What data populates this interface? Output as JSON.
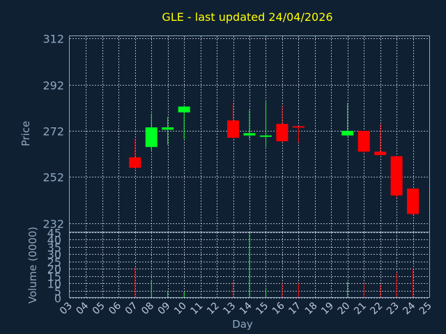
{
  "chart_data": {
    "type": "candlestick",
    "title": "GLE - last updated 24/04/2026",
    "price_panel": {
      "ylabel": "Price",
      "ylim": [
        228,
        313
      ],
      "y_ticks": [
        232,
        252,
        272,
        292,
        312
      ]
    },
    "volume_panel": {
      "ylabel": "Volume (0000)",
      "ylim": [
        0,
        45
      ],
      "y_ticks": [
        0,
        5,
        10,
        15,
        20,
        25,
        30,
        35,
        40,
        45
      ]
    },
    "xlabel": "Day",
    "x_ticks": [
      "03",
      "04",
      "05",
      "06",
      "07",
      "08",
      "09",
      "10",
      "11",
      "12",
      "13",
      "14",
      "15",
      "16",
      "17",
      "18",
      "19",
      "20",
      "21",
      "22",
      "23",
      "24",
      "25"
    ],
    "colors": {
      "up": "#00ff22",
      "down": "#ff0000",
      "title": "#ffff00",
      "axis": "#8fa8c0",
      "background": "#102033"
    },
    "candles": [
      {
        "day": "07",
        "open": 260.5,
        "high": 268.5,
        "low": 255.5,
        "close": 256.0,
        "volume": 21
      },
      {
        "day": "08",
        "open": 265.0,
        "high": 279.5,
        "low": 263.5,
        "close": 273.5,
        "volume": 12
      },
      {
        "day": "09",
        "open": 272.5,
        "high": 278.0,
        "low": 266.0,
        "close": 273.5,
        "volume": 5
      },
      {
        "day": "10",
        "open": 280.0,
        "high": 283.0,
        "low": 268.5,
        "close": 282.5,
        "volume": 4
      },
      {
        "day": "13",
        "open": 276.5,
        "high": 284.0,
        "low": 268.5,
        "close": 269.0,
        "volume": 11
      },
      {
        "day": "14",
        "open": 270.0,
        "high": 281.0,
        "low": 268.5,
        "close": 271.0,
        "volume": 44
      },
      {
        "day": "15",
        "open": 269.5,
        "high": 284.5,
        "low": 265.0,
        "close": 270.0,
        "volume": 7
      },
      {
        "day": "16",
        "open": 275.0,
        "high": 283.0,
        "low": 267.0,
        "close": 267.5,
        "volume": 10
      },
      {
        "day": "17",
        "open": 274.0,
        "high": 274.0,
        "low": 267.0,
        "close": 273.5,
        "volume": 10
      },
      {
        "day": "20",
        "open": 270.0,
        "high": 284.0,
        "low": 269.5,
        "close": 272.0,
        "volume": 11
      },
      {
        "day": "21",
        "open": 272.0,
        "high": 272.0,
        "low": 262.0,
        "close": 263.0,
        "volume": 10
      },
      {
        "day": "22",
        "open": 263.0,
        "high": 275.0,
        "low": 261.5,
        "close": 261.5,
        "volume": 9
      },
      {
        "day": "23",
        "open": 261.0,
        "high": 261.0,
        "low": 243.0,
        "close": 244.0,
        "volume": 17
      },
      {
        "day": "24",
        "open": 247.0,
        "high": 247.0,
        "low": 235.5,
        "close": 236.0,
        "volume": 20
      }
    ]
  }
}
